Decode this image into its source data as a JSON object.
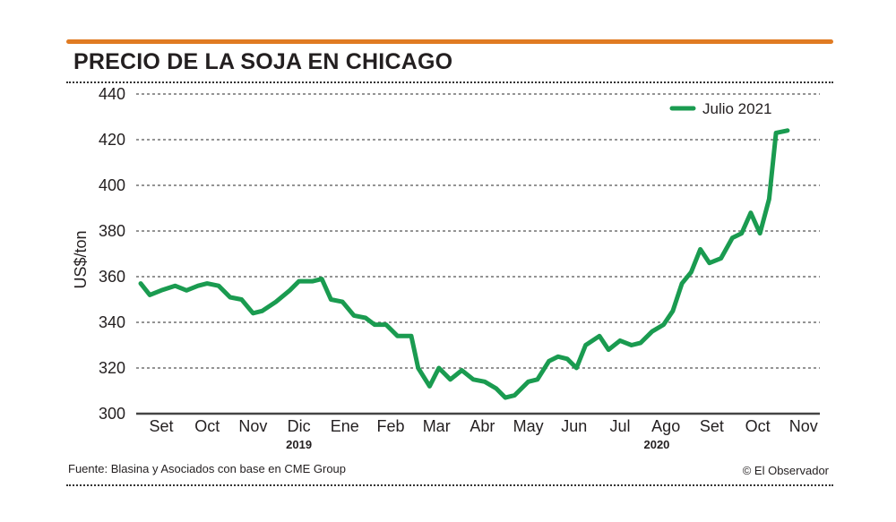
{
  "header": {
    "title": "PRECIO DE LA SOJA EN CHICAGO"
  },
  "footer": {
    "source": "Fuente: Blasina y Asociados con base en CME Group",
    "credit": "© El Observador"
  },
  "colors": {
    "accent_rule": "#e07b22",
    "series_line": "#1a9b50",
    "grid": "#555555",
    "text": "#231f20"
  },
  "chart_data": {
    "type": "line",
    "title": "PRECIO DE LA SOJA EN CHICAGO",
    "ylabel": "US$/ton",
    "xlabel": "",
    "ylim": [
      300,
      440
    ],
    "yticks": [
      300,
      320,
      340,
      360,
      380,
      400,
      420,
      440
    ],
    "grid": "horizontal dotted",
    "legend_position": "top-right",
    "categories": [
      "Set",
      "Oct",
      "Nov",
      "Dic",
      "Ene",
      "Feb",
      "Mar",
      "Abr",
      "May",
      "Jun",
      "Jul",
      "Ago",
      "Set",
      "Oct",
      "Nov"
    ],
    "year_labels": [
      {
        "text": "2019",
        "month_index": 3
      },
      {
        "text": "2020",
        "month_index": 10.8
      }
    ],
    "series": [
      {
        "name": "Julio 2021",
        "color": "#1a9b50",
        "points": [
          [
            -0.45,
            357
          ],
          [
            -0.25,
            352
          ],
          [
            0.0,
            354
          ],
          [
            0.3,
            356
          ],
          [
            0.55,
            354
          ],
          [
            0.8,
            356
          ],
          [
            1.0,
            357
          ],
          [
            1.25,
            356
          ],
          [
            1.5,
            351
          ],
          [
            1.75,
            350
          ],
          [
            2.0,
            344
          ],
          [
            2.2,
            345
          ],
          [
            2.5,
            349
          ],
          [
            2.8,
            354
          ],
          [
            3.0,
            358
          ],
          [
            3.3,
            358
          ],
          [
            3.5,
            359
          ],
          [
            3.7,
            350
          ],
          [
            3.95,
            349
          ],
          [
            4.2,
            343
          ],
          [
            4.45,
            342
          ],
          [
            4.65,
            339
          ],
          [
            4.9,
            339
          ],
          [
            5.15,
            334
          ],
          [
            5.45,
            334
          ],
          [
            5.6,
            320
          ],
          [
            5.85,
            312
          ],
          [
            6.05,
            320
          ],
          [
            6.3,
            315
          ],
          [
            6.55,
            319
          ],
          [
            6.8,
            315
          ],
          [
            7.05,
            314
          ],
          [
            7.3,
            311
          ],
          [
            7.5,
            307
          ],
          [
            7.7,
            308
          ],
          [
            8.0,
            314
          ],
          [
            8.2,
            315
          ],
          [
            8.45,
            323
          ],
          [
            8.65,
            325
          ],
          [
            8.85,
            324
          ],
          [
            9.05,
            320
          ],
          [
            9.25,
            330
          ],
          [
            9.55,
            334
          ],
          [
            9.75,
            328
          ],
          [
            10.0,
            332
          ],
          [
            10.25,
            330
          ],
          [
            10.45,
            331
          ],
          [
            10.7,
            336
          ],
          [
            10.95,
            339
          ],
          [
            11.15,
            345
          ],
          [
            11.35,
            357
          ],
          [
            11.55,
            362
          ],
          [
            11.75,
            372
          ],
          [
            11.95,
            366
          ],
          [
            12.2,
            368
          ],
          [
            12.45,
            377
          ],
          [
            12.65,
            379
          ],
          [
            12.85,
            388
          ],
          [
            13.05,
            379
          ],
          [
            13.25,
            394
          ],
          [
            13.4,
            423
          ],
          [
            13.65,
            424
          ]
        ]
      }
    ]
  }
}
